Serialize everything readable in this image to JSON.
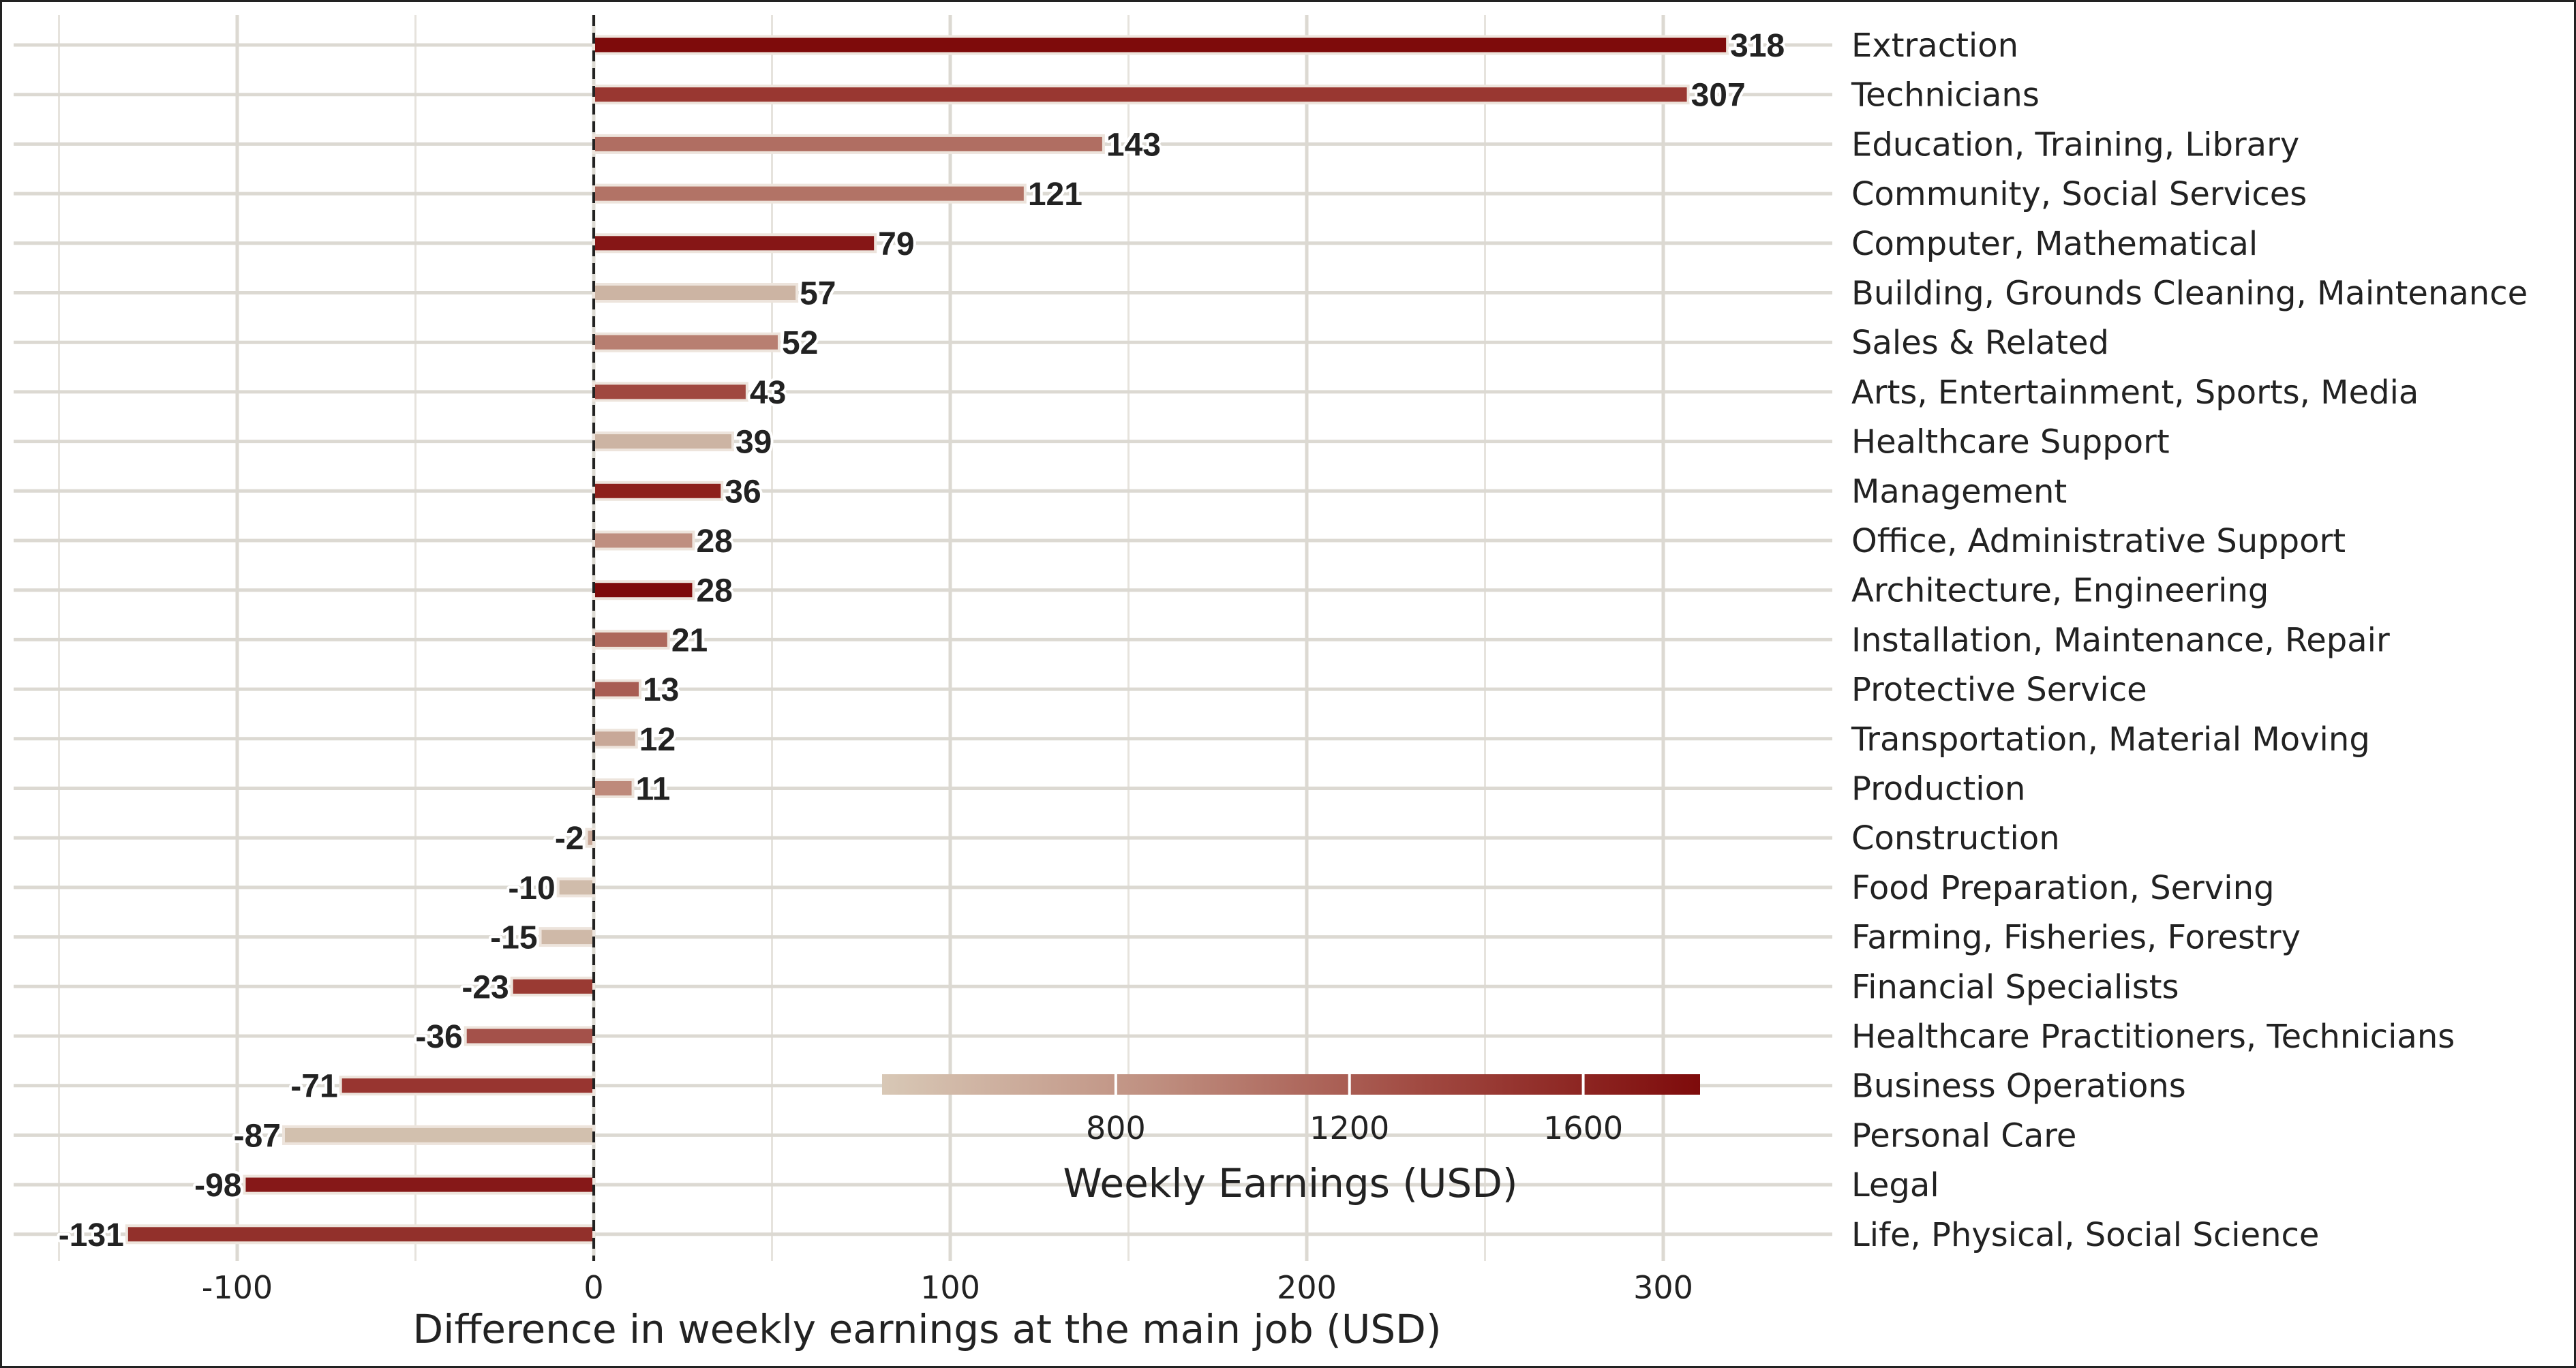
{
  "chart_data": {
    "type": "bar",
    "orientation": "horizontal",
    "xlabel": "Difference in weekly earnings at the main job (USD)",
    "xlim": [
      -150,
      345
    ],
    "x_ticks": [
      -100,
      0,
      100,
      200,
      300
    ],
    "x_tick_labels": [
      "-100",
      "0",
      "100",
      "200",
      "300"
    ],
    "grid": true,
    "reference_line": {
      "x": 0,
      "style": "dashed"
    },
    "categories": [
      "Extraction",
      "Technicians",
      "Education, Training, Library",
      "Community, Social Services",
      "Computer, Mathematical",
      "Building, Grounds Cleaning, Maintenance",
      "Sales & Related",
      "Arts, Entertainment, Sports, Media",
      "Healthcare Support",
      "Management",
      "Office, Administrative Support",
      "Architecture, Engineering",
      "Installation, Maintenance, Repair",
      "Protective Service",
      "Transportation, Material Moving",
      "Production",
      "Construction",
      "Food Preparation, Serving",
      "Farming, Fisheries, Forestry",
      "Financial Specialists",
      "Healthcare Practitioners, Technicians",
      "Business Operations",
      "Personal Care",
      "Legal",
      "Life, Physical, Social Science"
    ],
    "values": [
      318,
      307,
      143,
      121,
      79,
      57,
      52,
      43,
      39,
      36,
      28,
      28,
      21,
      13,
      12,
      11,
      -2,
      -10,
      -15,
      -23,
      -36,
      -71,
      -87,
      -98,
      -131
    ],
    "value_labels": [
      "318",
      "307",
      "143",
      "121",
      "79",
      "57",
      "52",
      "43",
      "39",
      "36",
      "28",
      "28",
      "21",
      "13",
      "12",
      "11",
      "-2",
      "-10",
      "-15",
      "-23",
      "-36",
      "-71",
      "-87",
      "-98",
      "-131"
    ],
    "bar_colors": [
      "#7e0b0b",
      "#993731",
      "#b06e62",
      "#b27366",
      "#861616",
      "#ccb4a3",
      "#b87f71",
      "#a04840",
      "#ccb4a3",
      "#8d211c",
      "#bf8f80",
      "#7e0b0b",
      "#ad685c",
      "#a85d53",
      "#c8a898",
      "#be8a7b",
      "#c8a898",
      "#d0bcab",
      "#cfb9a8",
      "#9a3a33",
      "#a4514a",
      "#983530",
      "#d2c0ae",
      "#861818",
      "#92302b"
    ],
    "color_legend": {
      "title": "Weekly Earnings (USD)",
      "tick_labels": [
        "800",
        "1200",
        "1600"
      ],
      "ticks": [
        800,
        1200,
        1600
      ],
      "range": [
        400,
        1800
      ],
      "gradient": [
        "#d8c8b6",
        "#bf8f80",
        "#a04840",
        "#7e0b0b"
      ],
      "placement": "bottom-right"
    }
  }
}
